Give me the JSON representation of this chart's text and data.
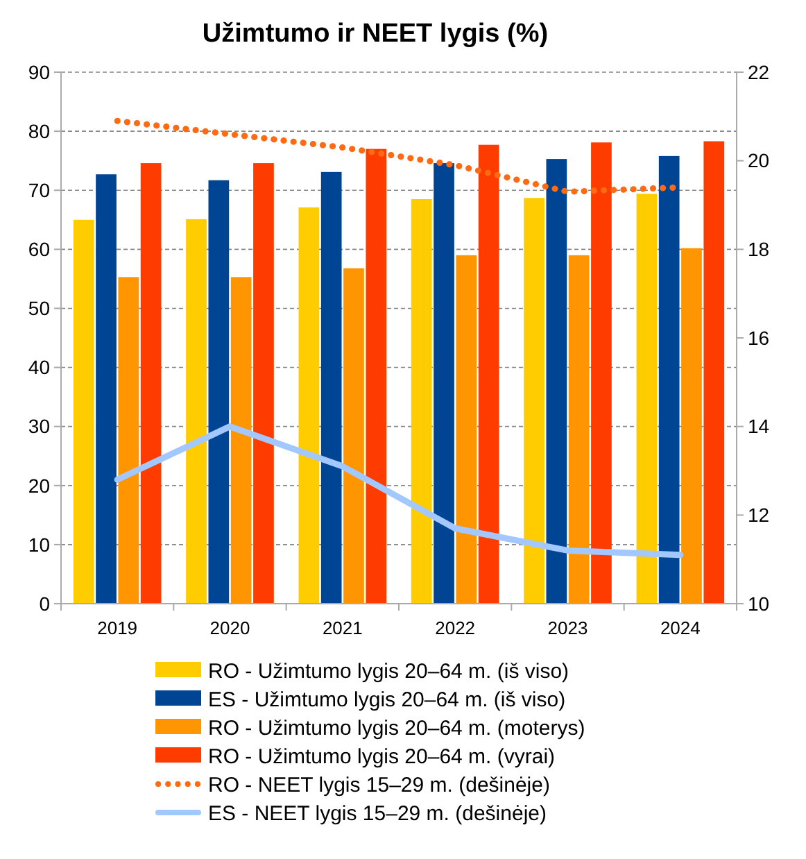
{
  "chart_data": {
    "type": "bar",
    "title": "Užimtumo ir NEET lygis (%)",
    "categories": [
      "2019",
      "2020",
      "2021",
      "2022",
      "2023",
      "2024"
    ],
    "series": [
      {
        "name": "RO - Užimtumo lygis 20–64 m. (iš viso)",
        "color": "#ffcc00",
        "values": [
          65.0,
          65.1,
          67.1,
          68.5,
          68.7,
          69.4
        ]
      },
      {
        "name": "ES - Užimtumo lygis 20–64 m. (iš viso)",
        "color": "#004494",
        "values": [
          72.7,
          71.7,
          73.1,
          74.6,
          75.3,
          75.8
        ]
      },
      {
        "name": "RO - Užimtumo lygis 20–64 m. (moterys)",
        "color": "#ff9500",
        "values": [
          55.3,
          55.3,
          56.8,
          59.0,
          59.0,
          60.2
        ]
      },
      {
        "name": "RO - Užimtumo lygis 20–64 m. (vyrai)",
        "color": "#ff3c00",
        "values": [
          74.6,
          74.6,
          77.0,
          77.7,
          78.1,
          78.3
        ]
      },
      {
        "name": "RO - NEET lygis 15–29 m. (dešinėje)",
        "color": "#ff6a13",
        "type": "line",
        "axis": "y2",
        "line_style": "dotted",
        "values": [
          20.9,
          20.6,
          20.3,
          19.9,
          19.3,
          19.4
        ]
      },
      {
        "name": "ES - NEET lygis 15–29 m. (dešinėje)",
        "color": "#a3c8ff",
        "type": "line",
        "axis": "y2",
        "line_style": "solid",
        "values": [
          12.8,
          14.0,
          13.1,
          11.7,
          11.2,
          11.1
        ]
      }
    ],
    "ylim": [
      0,
      90
    ],
    "yticks": [
      0,
      10,
      20,
      30,
      40,
      50,
      60,
      70,
      80,
      90
    ],
    "y2lim": [
      10,
      22
    ],
    "y2ticks": [
      10,
      12,
      14,
      16,
      18,
      20,
      22
    ],
    "grid": "y",
    "legend": "bottom"
  }
}
